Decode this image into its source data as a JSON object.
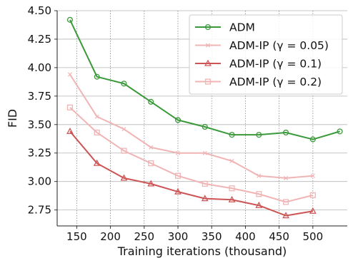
{
  "chart_data": {
    "type": "line",
    "title": "",
    "xlabel": "Training iterations (thousand)",
    "ylabel": "FID",
    "xlim": [
      121,
      551
    ],
    "ylim": [
      2.61,
      4.5
    ],
    "x_ticks": [
      150,
      200,
      250,
      300,
      350,
      400,
      450,
      500
    ],
    "y_ticks": [
      2.75,
      3.0,
      3.25,
      3.5,
      3.75,
      4.0,
      4.25,
      4.5
    ],
    "x_tick_labels": [
      "150",
      "200",
      "250",
      "300",
      "350",
      "400",
      "450",
      "500"
    ],
    "y_tick_labels": [
      "2.75",
      "3.00",
      "3.25",
      "3.50",
      "3.75",
      "4.00",
      "4.25",
      "4.50"
    ],
    "grid": {
      "horizontal": "solid",
      "vertical": "dotted"
    },
    "legend_position": "top-right",
    "series": [
      {
        "name": "ADM",
        "color": "#3a9a3a",
        "marker": "circle",
        "x": [
          140,
          180,
          220,
          260,
          300,
          340,
          380,
          420,
          460,
          500,
          540
        ],
        "y": [
          4.42,
          3.92,
          3.86,
          3.7,
          3.54,
          3.48,
          3.41,
          3.41,
          3.43,
          3.37,
          3.44
        ]
      },
      {
        "name": "ADM-IP (γ = 0.05)",
        "color": "#f0b4b4",
        "marker": "x",
        "x": [
          140,
          180,
          220,
          260,
          300,
          340,
          380,
          420,
          460,
          500
        ],
        "y": [
          3.94,
          3.57,
          3.46,
          3.3,
          3.25,
          3.25,
          3.18,
          3.05,
          3.03,
          3.05
        ]
      },
      {
        "name": "ADM-IP (γ = 0.1)",
        "color": "#cd5454",
        "marker": "triangle",
        "x": [
          140,
          180,
          220,
          260,
          300,
          340,
          380,
          420,
          460,
          500
        ],
        "y": [
          3.44,
          3.16,
          3.03,
          2.98,
          2.91,
          2.85,
          2.84,
          2.79,
          2.7,
          2.74
        ]
      },
      {
        "name": "ADM-IP (γ = 0.2)",
        "color": "#f0b4b4",
        "marker": "square",
        "x": [
          140,
          180,
          220,
          260,
          300,
          340,
          380,
          420,
          460,
          500
        ],
        "y": [
          3.65,
          3.43,
          3.27,
          3.16,
          3.05,
          2.98,
          2.94,
          2.89,
          2.82,
          2.88
        ]
      }
    ]
  }
}
